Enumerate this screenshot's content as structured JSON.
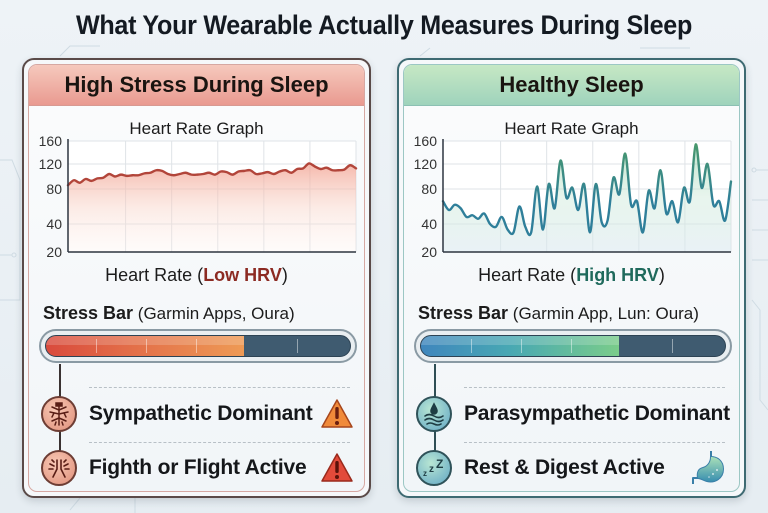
{
  "title": "What Your Wearable Actually Measures During Sleep",
  "panels": [
    {
      "id": "left",
      "header": "High Stress During Sleep",
      "header_color": "#e99a90",
      "chart_title": "Heart Rate Graph",
      "xlabel_prefix": "Heart Rate (",
      "xlabel_highlight": "Low HRV",
      "xlabel_suffix": ")",
      "highlight_color": "#8c2a22",
      "line_color": "#b2453a",
      "stress_label_bold": "Stress Bar",
      "stress_label_rest": " (Garmin Apps, Oura)",
      "stress_level_pct": 65,
      "rows": [
        {
          "label": "Sympathetic Dominant",
          "icon": "nerve-tree-icon",
          "end_icon": "warning-triangle-icon",
          "end_color": "#f08a3a"
        },
        {
          "label": "Fighth or Flight Active",
          "icon": "fight-or-flight-icon",
          "end_icon": "warning-triangle-icon",
          "end_color": "#e0453a"
        }
      ]
    },
    {
      "id": "right",
      "header": "Healthy Sleep",
      "header_color": "#9fd3bc",
      "chart_title": "Heart Rate Graph",
      "xlabel_prefix": "Heart Rate (",
      "xlabel_highlight": "High HRV",
      "xlabel_suffix": ")",
      "highlight_color": "#1f6a5c",
      "line_color": "#2f7f9a",
      "stress_label_bold": "Stress Bar",
      "stress_label_rest": " (Garmin App, Lun: Oura)",
      "stress_level_pct": 65,
      "rows": [
        {
          "label": "Parasympathetic Dominant",
          "icon": "water-drop-waves-icon",
          "end_icon": "",
          "end_color": ""
        },
        {
          "label": "Rest & Digest Active",
          "icon": "sleep-zzz-icon",
          "end_icon": "stomach-icon",
          "end_color": "#3f8fb0"
        }
      ]
    }
  ],
  "chart_data": [
    {
      "type": "line",
      "title": "Heart Rate Graph",
      "xlabel": "Heart Rate (Low HRV)",
      "ylabel": "",
      "yticks": [
        20,
        40,
        80,
        120,
        160
      ],
      "ylim": [
        20,
        160
      ],
      "grid": true,
      "x": [
        0,
        1,
        2,
        3,
        4,
        5,
        6,
        7,
        8,
        9,
        10,
        11,
        12,
        13,
        14,
        15,
        16,
        17,
        18,
        19,
        20,
        21,
        22,
        23,
        24,
        25,
        26,
        27,
        28,
        29,
        30,
        31,
        32,
        33,
        34,
        35,
        36,
        37,
        38,
        39,
        40,
        41,
        42,
        43,
        44,
        45,
        46,
        47,
        48,
        49
      ],
      "values": [
        86,
        94,
        90,
        96,
        93,
        97,
        98,
        104,
        100,
        103,
        101,
        102,
        102,
        105,
        106,
        110,
        109,
        104,
        102,
        104,
        106,
        103,
        103,
        104,
        106,
        103,
        108,
        107,
        103,
        108,
        109,
        110,
        104,
        105,
        107,
        104,
        108,
        110,
        106,
        112,
        113,
        121,
        116,
        112,
        114,
        110,
        110,
        111,
        118,
        113
      ]
    },
    {
      "type": "line",
      "title": "Heart Rate Graph",
      "xlabel": "Heart Rate (High HRV)",
      "ylabel": "",
      "yticks": [
        20,
        40,
        80,
        120,
        160
      ],
      "ylim": [
        20,
        160
      ],
      "grid": true,
      "x": [
        0,
        1,
        2,
        3,
        4,
        5,
        6,
        7,
        8,
        9,
        10,
        11,
        12,
        13,
        14,
        15,
        16,
        17,
        18,
        19,
        20,
        21,
        22,
        23,
        24,
        25,
        26,
        27,
        28,
        29,
        30,
        31,
        32,
        33,
        34,
        35,
        36,
        37,
        38,
        39,
        40,
        41,
        42,
        43,
        44,
        45,
        46,
        47,
        48,
        49
      ],
      "values": [
        66,
        56,
        62,
        58,
        48,
        50,
        46,
        52,
        40,
        38,
        48,
        36,
        34,
        60,
        38,
        34,
        84,
        36,
        88,
        58,
        126,
        70,
        82,
        56,
        88,
        34,
        88,
        42,
        44,
        98,
        74,
        138,
        62,
        66,
        34,
        78,
        58,
        110,
        52,
        66,
        42,
        82,
        66,
        154,
        82,
        120,
        62,
        66,
        44,
        92
      ]
    }
  ]
}
